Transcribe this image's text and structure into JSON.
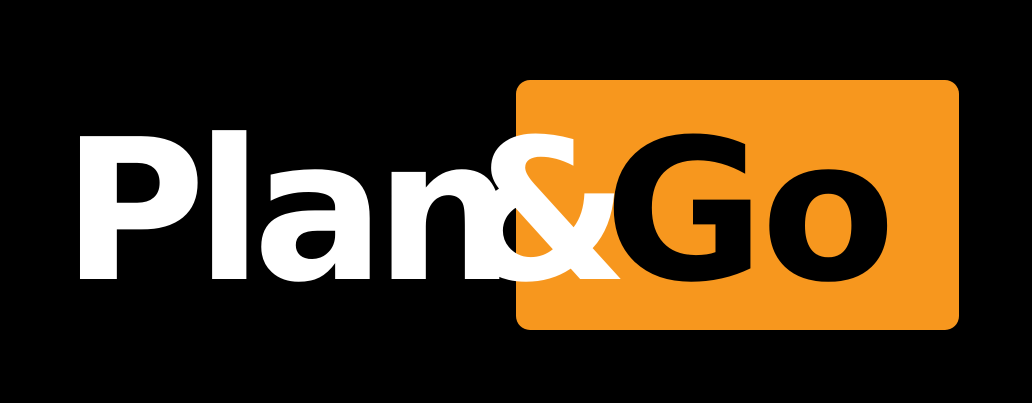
{
  "logo": {
    "word_primary": "Plan",
    "ampersand": "&",
    "word_secondary": "Go",
    "colors": {
      "background": "#000000",
      "primary_text": "#ffffff",
      "accent_box": "#f7971e",
      "secondary_text": "#000000"
    }
  }
}
